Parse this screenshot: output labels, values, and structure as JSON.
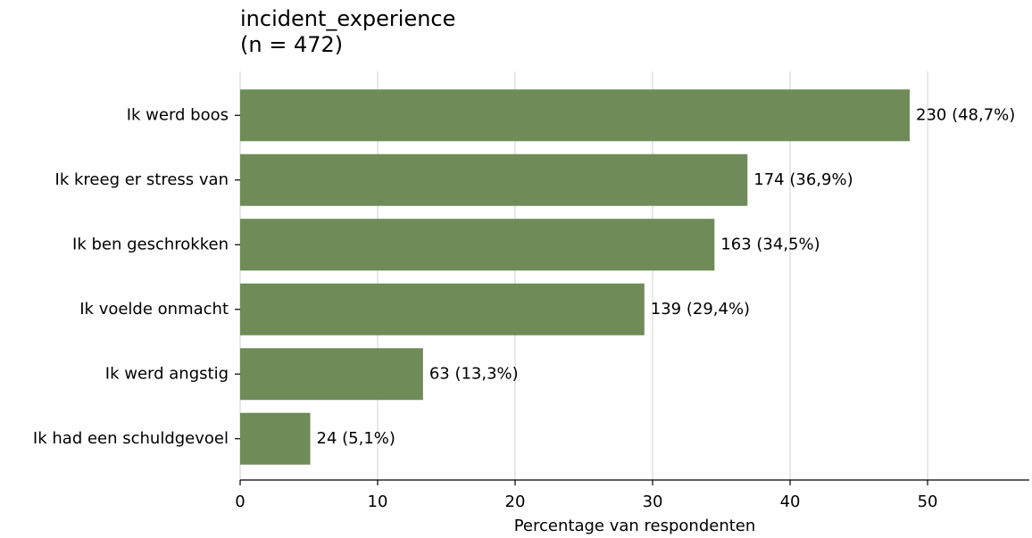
{
  "chart_data": {
    "type": "barh",
    "title": "incident_experience",
    "subtitle": "(n = 472)",
    "xlabel": "Percentage van respondenten",
    "categories": [
      "Ik werd boos",
      "Ik kreeg er stress van",
      "Ik ben geschrokken",
      "Ik voelde onmacht",
      "Ik werd angstig",
      "Ik had een schuldgevoel"
    ],
    "values": [
      48.7,
      36.9,
      34.5,
      29.4,
      13.3,
      5.1
    ],
    "value_labels": [
      "230 (48,7%)",
      "174 (36,9%)",
      "163 (34,5%)",
      "139 (29,4%)",
      "63 (13,3%)",
      "24 (5,1%)"
    ],
    "color": "#6e8b58",
    "xlim": [
      0,
      57.4
    ],
    "xticks": [
      0,
      10,
      20,
      30,
      40,
      50
    ],
    "grid": true
  }
}
